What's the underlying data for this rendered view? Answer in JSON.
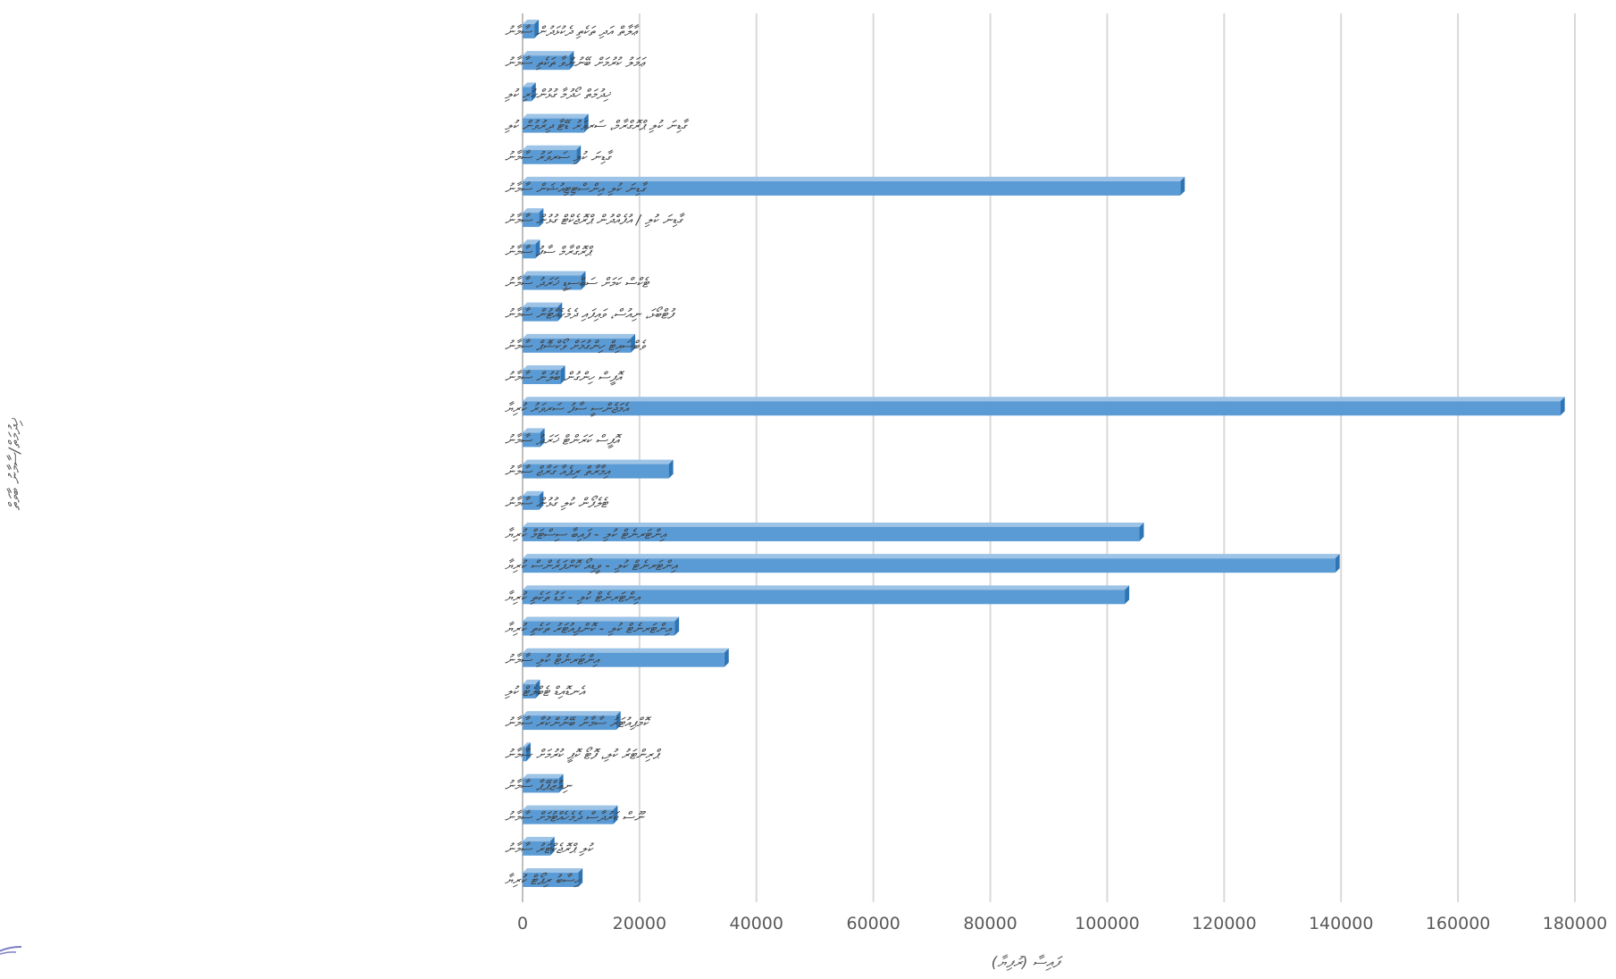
{
  "chart_data": {
    "type": "bar",
    "orientation": "horizontal",
    "style": "3d-clustered-bar",
    "title": "",
    "xlabel": "ފައިސާ (ރުފިޔާ)",
    "ylabel": "ޚިދުމަތް/ސާމާނު ބާވަތް",
    "xlim": [
      0,
      180000
    ],
    "xticks": [
      "0",
      "20000",
      "40000",
      "60000",
      "80000",
      "100000",
      "120000",
      "140000",
      "160000",
      "180000"
    ],
    "grid": "vertical",
    "legend": "none",
    "bar_color": "#5b9bd5",
    "categories": [
      "ޢާލާތް އަދި ތަކެތި ދެކުޅަދުން ސާމާނު",
      "ޢަމަލު ކުރުމަށް ބޭނުންވާ ތަކެތި ސާމާނު",
      "ޚިދުމަތް ހޯދުމާ ގުޅުންހުރި ކުލި",
      "ގާޑިނަ ކުލި ޕްރޮގްރާމް، ސަރވަރު ޑޭޓާ ދިރުވުން ކުލި",
      "ގާޑިނަ ކުލި ސަރވަރު ސާމާނު",
      "ގާޑިނަ ކުލި އިންސްޓިޓިއުޝަން ސާމާނު",
      "ގާޑިނަ ކުލި / އުފެއްދުން ޕްރޮޖެކްޓް ގުޅުން ސާމާނު",
      "ޕްރޮގްރާމް ސާފު ސާމާނު",
      "ޓެކްސް ކަމަށް ސަބްސިޑީ ޚަރަދު ސާމާނު",
      "ފުޓްބޯޅަ، ނިއުސް، ވައިފައި ދެމެހެއްޓުން ސާމާނު",
      "ވެބްސައިޓް ހިންގުމަށް ވޯކްޝޮޕް ސާމާނު",
      "އޮފީސް ހިންގުން ބެލުން ސާމާނު",
      "އެމަޖެންސީ ސާފު ސަރވަރު ކުރިޔާ",
      "އޮފީސް ކަރަންޓް ޚަރަދު ސާމާނު",
      "އިމާރާތް ރިޕެއާ ގަރާޖް ސާމާނު",
      "ޓެލެފޯން ކުލި ގުޅުން ސާމާނު",
      "އިންޓަރނެޓް ކުލި - ފައިބާ ސިސްޓަމް ކުރިޔާ",
      "އިންޓަރނެޓް ކުލި - ވީޑިއޯ ކޮންފަރެންސް ކުރިޔާ",
      "އިންޓަރނެޓް ކުލި - މަޑު ތަކެތި ކުރިޔާ",
      "އިންޓަރނެޓް ކުލި - ކޮންޕިއުޓަރު ތަކެތި ކުރިޔާ",
      "އިންޓަރނެޓް ކުލި ސާމާނު",
      "އެނޑޮއިޑް ޓެބްލެޓް ކުލި",
      "ކޮމްޕިއުޓަރު ސާމާނު ބޭނުންކުރާ ސާމާނު",
      "ޕްރިންޓަރު ކުލި، ފޮޓޯ ކޮޕީ ކުރުމަށް ސާމާނު",
      "ނިއުޒްޕޭޕާ ސާމާނު",
      "ނޫސް ކަރުދާސް ދެމެހެއްޓުމަށް ސާމާނު",
      "ކުލި ޕްރޮޖެކްޓަރު ސާމާނު",
      "ހިސާބު ރިޕޯޓް ކުރިޔާ"
    ],
    "values": [
      2000,
      8000,
      1500,
      10500,
      9200,
      112500,
      2800,
      2200,
      10000,
      6000,
      18500,
      6500,
      177500,
      3000,
      25000,
      2800,
      105500,
      139000,
      103000,
      26000,
      34500,
      2200,
      16000,
      600,
      6200,
      15500,
      4700,
      9500
    ]
  }
}
